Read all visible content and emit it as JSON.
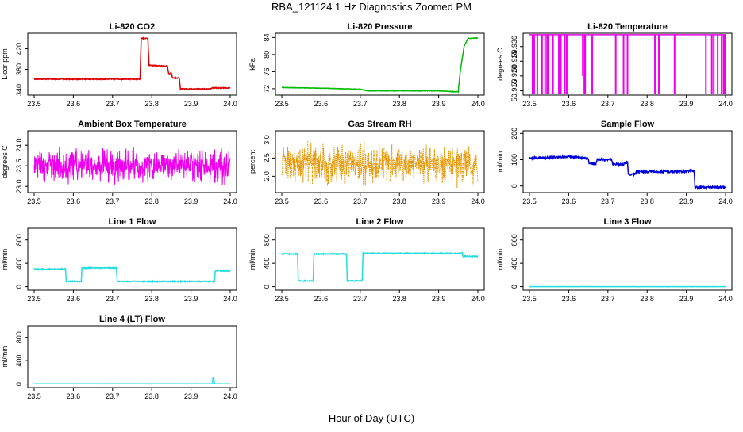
{
  "figure": {
    "title": "RBA_121124  1 Hz Diagnostics Zoomed PM",
    "xlabel": "Hour of Day (UTC)"
  },
  "chart_data": [
    {
      "id": "co2",
      "type": "line",
      "title": "Li-820 CO2",
      "ylabel": "Licor ppm",
      "color": "#dd0000",
      "xlim": [
        23.5,
        24.0
      ],
      "ylim": [
        330,
        450
      ],
      "x_ticks": [
        "23.5",
        "23.6",
        "23.7",
        "23.8",
        "23.9",
        "24.0"
      ],
      "y_ticks": [
        340,
        380,
        420
      ],
      "y_tick_labels": [
        "340",
        "380",
        "420"
      ],
      "series": [
        {
          "name": "CO2",
          "kind": "step",
          "noise": 0.8,
          "x": [
            23.5,
            23.77,
            23.773,
            23.79,
            23.793,
            23.84,
            23.843,
            23.85,
            23.853,
            23.87,
            23.873,
            23.95,
            23.953,
            24.0
          ],
          "y": [
            361,
            361,
            440,
            440,
            388,
            386,
            372,
            372,
            363,
            363,
            342,
            342,
            344,
            344
          ]
        }
      ]
    },
    {
      "id": "pressure",
      "type": "line",
      "title": "Li-820 Pressure",
      "ylabel": "kPa",
      "color": "#00bb00",
      "xlim": [
        23.5,
        24.0
      ],
      "ylim": [
        70.5,
        85
      ],
      "x_ticks": [
        "23.5",
        "23.6",
        "23.7",
        "23.8",
        "23.9",
        "24.0"
      ],
      "y_ticks": [
        72,
        76,
        80,
        84
      ],
      "y_tick_labels": [
        "72",
        "76",
        "80",
        "84"
      ],
      "series": [
        {
          "name": "Pressure",
          "kind": "step",
          "noise": 0.05,
          "x": [
            23.5,
            23.62,
            23.65,
            23.7,
            23.72,
            23.9,
            23.94,
            23.95,
            23.955,
            23.965,
            23.975,
            24.0
          ],
          "y": [
            72.3,
            72.1,
            72.0,
            71.9,
            71.5,
            71.5,
            71.3,
            71.3,
            76.0,
            82.0,
            83.8,
            83.9
          ]
        }
      ]
    },
    {
      "id": "temp820",
      "type": "line",
      "title": "Li-820 Temperature",
      "ylabel": "degrees C",
      "color": "#ee00ee",
      "xlim": [
        23.5,
        24.0
      ],
      "ylim": [
        50.9135,
        50.9345
      ],
      "x_ticks": [
        "23.5",
        "23.6",
        "23.7",
        "23.8",
        "23.9",
        "24.0"
      ],
      "y_ticks": [
        50.915,
        50.92,
        50.925,
        50.93
      ],
      "y_tick_labels": [
        "50.915",
        "50.920",
        "50.925",
        "50.930"
      ],
      "series": [
        {
          "name": "Temperature",
          "kind": "spikes",
          "high": 50.934,
          "low": 50.9135,
          "spike_x": [
            23.508,
            23.512,
            23.52,
            23.532,
            23.54,
            23.545,
            23.548,
            23.56,
            23.575,
            23.58,
            23.59,
            23.595,
            23.64,
            23.642,
            23.66,
            23.72,
            23.74,
            23.75,
            23.82,
            23.83,
            23.87,
            23.95,
            23.965,
            23.97,
            23.98,
            23.99,
            23.995,
            23.998
          ],
          "dip_x": [
            23.635
          ],
          "dip_y": 50.92
        }
      ]
    },
    {
      "id": "ambient",
      "type": "line",
      "title": "Ambient Box Temperature",
      "ylabel": "degrees C",
      "color": "#ee00ee",
      "xlim": [
        23.5,
        24.0
      ],
      "ylim": [
        22.85,
        24.35
      ],
      "x_ticks": [
        "23.5",
        "23.6",
        "23.7",
        "23.8",
        "23.9",
        "24.0"
      ],
      "y_ticks": [
        23.0,
        23.5,
        24.0
      ],
      "y_tick_labels": [
        "23.0",
        "23.5",
        "24.0"
      ],
      "series": [
        {
          "name": "Ambient",
          "kind": "noise",
          "center": 23.5,
          "amplitude": 0.55,
          "x": [
            23.5,
            24.0
          ]
        }
      ]
    },
    {
      "id": "rh",
      "type": "line",
      "title": "Gas Stream RH",
      "ylabel": "percent",
      "color": "#e69500",
      "xlim": [
        23.5,
        24.0
      ],
      "ylim": [
        1.55,
        3.25
      ],
      "x_ticks": [
        "23.5",
        "23.6",
        "23.7",
        "23.8",
        "23.9",
        "24.0"
      ],
      "y_ticks": [
        2.0,
        2.5,
        3.0
      ],
      "y_tick_labels": [
        "2.0",
        "2.5",
        "3.0"
      ],
      "series": [
        {
          "name": "RH",
          "kind": "noise",
          "center": 2.35,
          "amplitude": 0.75,
          "dotted": true,
          "x": [
            23.5,
            24.0
          ]
        }
      ]
    },
    {
      "id": "sample",
      "type": "line",
      "title": "Sample Flow",
      "ylabel": "ml/min",
      "color": "#0000dd",
      "xlim": [
        23.5,
        24.0
      ],
      "ylim": [
        -25,
        210
      ],
      "x_ticks": [
        "23.5",
        "23.6",
        "23.7",
        "23.8",
        "23.9",
        "24.0"
      ],
      "y_ticks": [
        0,
        100,
        200
      ],
      "y_tick_labels": [
        "0",
        "100",
        "200"
      ],
      "series": [
        {
          "name": "Sample",
          "kind": "step",
          "noise": 4,
          "x": [
            23.5,
            23.58,
            23.6,
            23.65,
            23.652,
            23.67,
            23.672,
            23.71,
            23.712,
            23.74,
            23.742,
            23.75,
            23.752,
            23.77,
            23.772,
            23.9,
            23.912,
            23.92,
            23.922,
            24.0
          ],
          "y": [
            105,
            110,
            112,
            105,
            85,
            85,
            100,
            100,
            82,
            82,
            88,
            88,
            45,
            45,
            55,
            55,
            60,
            55,
            -5,
            -5
          ]
        }
      ]
    },
    {
      "id": "line1",
      "type": "line",
      "title": "Line 1 Flow",
      "ylabel": "ml/min",
      "color": "#22dddd",
      "xlim": [
        23.5,
        24.0
      ],
      "ylim": [
        -60,
        1000
      ],
      "x_ticks": [
        "23.5",
        "23.6",
        "23.7",
        "23.8",
        "23.9",
        "24.0"
      ],
      "y_ticks": [
        0,
        400,
        800
      ],
      "y_tick_labels": [
        "0",
        "400",
        "800"
      ],
      "series": [
        {
          "name": "Line 1",
          "kind": "step",
          "noise": 8,
          "x": [
            23.5,
            23.58,
            23.582,
            23.62,
            23.622,
            23.71,
            23.712,
            23.96,
            23.962,
            24.0
          ],
          "y": [
            300,
            300,
            90,
            90,
            320,
            320,
            90,
            90,
            270,
            270
          ]
        }
      ]
    },
    {
      "id": "line2",
      "type": "line",
      "title": "Line 2 Flow",
      "ylabel": "ml/min",
      "color": "#22dddd",
      "xlim": [
        23.5,
        24.0
      ],
      "ylim": [
        -60,
        1000
      ],
      "x_ticks": [
        "23.5",
        "23.6",
        "23.7",
        "23.8",
        "23.9",
        "24.0"
      ],
      "y_ticks": [
        0,
        400,
        800
      ],
      "y_tick_labels": [
        "0",
        "400",
        "800"
      ],
      "series": [
        {
          "name": "Line 2",
          "kind": "step",
          "noise": 8,
          "x": [
            23.5,
            23.54,
            23.542,
            23.58,
            23.582,
            23.665,
            23.667,
            23.705,
            23.707,
            23.96,
            23.962,
            24.0
          ],
          "y": [
            560,
            560,
            100,
            100,
            560,
            560,
            100,
            100,
            570,
            570,
            520,
            520
          ]
        }
      ]
    },
    {
      "id": "line3",
      "type": "line",
      "title": "Line 3 Flow",
      "ylabel": "ml/min",
      "color": "#22dddd",
      "xlim": [
        23.5,
        24.0
      ],
      "ylim": [
        -60,
        1000
      ],
      "x_ticks": [
        "23.5",
        "23.6",
        "23.7",
        "23.8",
        "23.9",
        "24.0"
      ],
      "y_ticks": [
        0,
        400,
        800
      ],
      "y_tick_labels": [
        "0",
        "400",
        "800"
      ],
      "series": [
        {
          "name": "Line 3",
          "kind": "step",
          "noise": 1,
          "x": [
            23.5,
            24.0
          ],
          "y": [
            0,
            0
          ]
        }
      ]
    },
    {
      "id": "line4",
      "type": "line",
      "title": "Line 4 (LT) Flow",
      "ylabel": "ml/min",
      "color": "#22dddd",
      "xlim": [
        23.5,
        24.0
      ],
      "ylim": [
        -60,
        1000
      ],
      "x_ticks": [
        "23.5",
        "23.6",
        "23.7",
        "23.8",
        "23.9",
        "24.0"
      ],
      "y_ticks": [
        0,
        400,
        800
      ],
      "y_tick_labels": [
        "0",
        "400",
        "800"
      ],
      "series": [
        {
          "name": "Line 4",
          "kind": "step",
          "noise": 1,
          "x": [
            23.5,
            23.955,
            23.956,
            23.958,
            23.96,
            24.0
          ],
          "y": [
            5,
            5,
            110,
            110,
            5,
            5
          ]
        }
      ]
    }
  ]
}
